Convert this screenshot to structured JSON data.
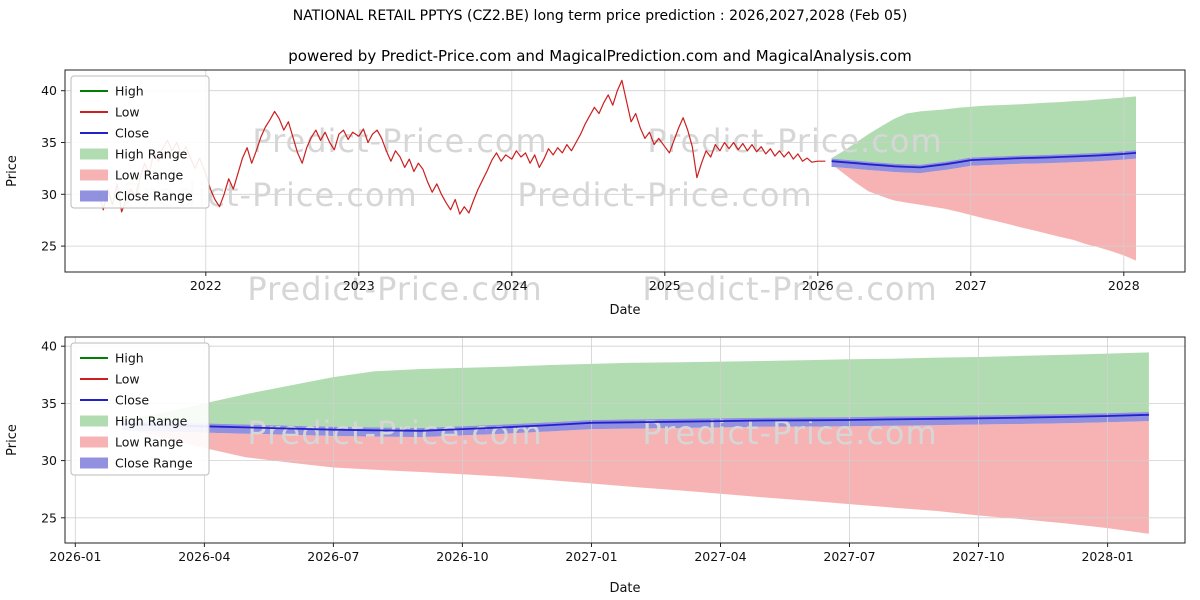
{
  "title": "NATIONAL RETAIL PPTYS (CZ2.BE) long term price prediction : 2026,2027,2028 (Feb 05)",
  "subtitle": "powered by Predict-Price.com and MagicalPrediction.com and MagicalAnalysis.com",
  "watermark": "Predict-Price.com",
  "colors": {
    "high": "#008000",
    "low": "#cc1f1f",
    "close": "#2222cc",
    "high_range": "#a8d8a8",
    "low_range": "#f6abab",
    "close_range": "#8585dd",
    "grid": "#d0d0d0",
    "watermark": "#d6d6d6",
    "axis": "#222222",
    "text": "#111111"
  },
  "legend": [
    {
      "label": "High",
      "swatch": "line",
      "color": "high"
    },
    {
      "label": "Low",
      "swatch": "line",
      "color": "low"
    },
    {
      "label": "Close",
      "swatch": "line",
      "color": "close"
    },
    {
      "label": "High Range",
      "swatch": "patch",
      "color": "high_range"
    },
    {
      "label": "Low Range",
      "swatch": "patch",
      "color": "low_range"
    },
    {
      "label": "Close Range",
      "swatch": "patch",
      "color": "close_range"
    }
  ],
  "chart_data": {
    "charts": [
      {
        "type": "line",
        "title": "",
        "xlabel": "Date",
        "ylabel": "Price",
        "xlim": [
          2021.08,
          2028.4
        ],
        "ylim": [
          22.5,
          42.0
        ],
        "xticks": [
          2022,
          2023,
          2024,
          2025,
          2026,
          2027,
          2028
        ],
        "xtick_labels": [
          "2022",
          "2023",
          "2024",
          "2025",
          "2026",
          "2027",
          "2028"
        ],
        "yticks": [
          25,
          30,
          35,
          40
        ],
        "grid": true,
        "legend_position": "upper-left",
        "show_history": true,
        "show_prediction": true
      },
      {
        "type": "line",
        "title": "",
        "xlabel": "Date",
        "ylabel": "Price",
        "xlim": [
          2025.98,
          2028.15
        ],
        "ylim": [
          22.8,
          40.8
        ],
        "xticks": [
          2026.0,
          2026.25,
          2026.5,
          2026.75,
          2027.0,
          2027.25,
          2027.5,
          2027.75,
          2028.0
        ],
        "xtick_labels": [
          "2026-01",
          "2026-04",
          "2026-07",
          "2026-10",
          "2027-01",
          "2027-04",
          "2027-07",
          "2027-10",
          "2028-01"
        ],
        "yticks": [
          25,
          30,
          35,
          40
        ],
        "grid": true,
        "legend_position": "upper-left",
        "show_history": false,
        "show_prediction": true
      }
    ],
    "history": {
      "name": "Low",
      "x": [
        2021.3,
        2021.33,
        2021.36,
        2021.39,
        2021.42,
        2021.45,
        2021.48,
        2021.51,
        2021.54,
        2021.57,
        2021.6,
        2021.63,
        2021.66,
        2021.69,
        2021.72,
        2021.75,
        2021.78,
        2021.81,
        2021.84,
        2021.87,
        2021.9,
        2021.93,
        2021.96,
        2022.0,
        2022.03,
        2022.06,
        2022.09,
        2022.12,
        2022.15,
        2022.18,
        2022.21,
        2022.24,
        2022.27,
        2022.3,
        2022.33,
        2022.36,
        2022.39,
        2022.42,
        2022.45,
        2022.48,
        2022.51,
        2022.54,
        2022.57,
        2022.6,
        2022.63,
        2022.66,
        2022.69,
        2022.72,
        2022.75,
        2022.78,
        2022.81,
        2022.84,
        2022.87,
        2022.9,
        2022.93,
        2022.96,
        2023.0,
        2023.03,
        2023.06,
        2023.09,
        2023.12,
        2023.15,
        2023.18,
        2023.21,
        2023.24,
        2023.27,
        2023.3,
        2023.33,
        2023.36,
        2023.39,
        2023.42,
        2023.45,
        2023.48,
        2023.51,
        2023.54,
        2023.57,
        2023.6,
        2023.63,
        2023.66,
        2023.69,
        2023.72,
        2023.75,
        2023.78,
        2023.81,
        2023.84,
        2023.87,
        2023.9,
        2023.93,
        2023.96,
        2024.0,
        2024.03,
        2024.06,
        2024.09,
        2024.12,
        2024.15,
        2024.18,
        2024.21,
        2024.24,
        2024.27,
        2024.3,
        2024.33,
        2024.36,
        2024.39,
        2024.42,
        2024.45,
        2024.48,
        2024.51,
        2024.54,
        2024.57,
        2024.6,
        2024.63,
        2024.66,
        2024.69,
        2024.72,
        2024.75,
        2024.78,
        2024.81,
        2024.84,
        2024.87,
        2024.9,
        2024.93,
        2024.96,
        2025.0,
        2025.03,
        2025.06,
        2025.09,
        2025.12,
        2025.15,
        2025.18,
        2025.21,
        2025.24,
        2025.27,
        2025.3,
        2025.33,
        2025.36,
        2025.39,
        2025.42,
        2025.45,
        2025.48,
        2025.51,
        2025.54,
        2025.57,
        2025.6,
        2025.63,
        2025.66,
        2025.69,
        2025.72,
        2025.75,
        2025.78,
        2025.81,
        2025.84,
        2025.87,
        2025.9,
        2025.93,
        2025.96,
        2026.0,
        2026.05
      ],
      "y": [
        30.0,
        28.5,
        30.5,
        29.0,
        31.0,
        28.3,
        29.5,
        30.5,
        29.8,
        31.5,
        33.0,
        32.0,
        34.0,
        33.2,
        34.5,
        35.2,
        34.2,
        35.0,
        33.8,
        34.6,
        33.5,
        32.5,
        33.5,
        32.0,
        30.5,
        29.5,
        28.8,
        30.0,
        31.5,
        30.5,
        32.0,
        33.5,
        34.5,
        33.0,
        34.2,
        35.5,
        36.5,
        37.2,
        38.0,
        37.3,
        36.2,
        37.0,
        35.5,
        34.0,
        33.0,
        34.5,
        35.5,
        36.2,
        35.2,
        36.0,
        35.0,
        34.3,
        35.8,
        36.2,
        35.3,
        36.0,
        35.6,
        36.3,
        35.0,
        35.8,
        36.2,
        35.4,
        34.2,
        33.2,
        34.2,
        33.6,
        32.6,
        33.4,
        32.2,
        33.0,
        32.4,
        31.2,
        30.2,
        31.0,
        30.0,
        29.2,
        28.5,
        29.5,
        28.1,
        28.8,
        28.2,
        29.4,
        30.5,
        31.4,
        32.3,
        33.3,
        34.0,
        33.2,
        33.8,
        33.4,
        34.2,
        33.6,
        34.0,
        33.0,
        33.8,
        32.6,
        33.4,
        34.4,
        33.8,
        34.5,
        34.0,
        34.8,
        34.2,
        35.0,
        35.8,
        36.8,
        37.6,
        38.4,
        37.8,
        38.8,
        39.6,
        38.6,
        40.0,
        41.0,
        39.0,
        37.0,
        37.8,
        36.4,
        35.4,
        36.0,
        34.8,
        35.4,
        34.6,
        34.0,
        35.2,
        36.4,
        37.4,
        36.2,
        34.6,
        31.6,
        33.0,
        34.2,
        33.6,
        34.8,
        34.2,
        35.0,
        34.4,
        35.0,
        34.3,
        34.9,
        34.2,
        34.8,
        34.1,
        34.6,
        33.9,
        34.4,
        33.7,
        34.2,
        33.6,
        34.1,
        33.4,
        33.9,
        33.2,
        33.5,
        33.1,
        33.2,
        33.2
      ]
    },
    "prediction": {
      "x": [
        2026.09,
        2026.17,
        2026.25,
        2026.33,
        2026.42,
        2026.5,
        2026.58,
        2026.67,
        2026.75,
        2026.83,
        2026.92,
        2027.0,
        2027.08,
        2027.17,
        2027.25,
        2027.33,
        2027.42,
        2027.5,
        2027.58,
        2027.67,
        2027.75,
        2027.83,
        2027.92,
        2028.0,
        2028.08
      ],
      "close": [
        33.2,
        33.1,
        33.0,
        32.9,
        32.8,
        32.7,
        32.65,
        32.6,
        32.75,
        32.9,
        33.1,
        33.3,
        33.35,
        33.4,
        33.45,
        33.5,
        33.52,
        33.55,
        33.6,
        33.65,
        33.7,
        33.75,
        33.82,
        33.9,
        34.0
      ],
      "high": [
        33.5,
        34.2,
        35.0,
        35.8,
        36.6,
        37.3,
        37.8,
        38.0,
        38.1,
        38.2,
        38.35,
        38.45,
        38.55,
        38.6,
        38.65,
        38.7,
        38.78,
        38.85,
        38.9,
        39.0,
        39.05,
        39.15,
        39.25,
        39.35,
        39.45
      ],
      "low": [
        32.9,
        32.0,
        31.1,
        30.3,
        29.8,
        29.4,
        29.2,
        29.0,
        28.8,
        28.6,
        28.3,
        28.0,
        27.7,
        27.4,
        27.1,
        26.8,
        26.5,
        26.2,
        25.9,
        25.6,
        25.2,
        24.9,
        24.5,
        24.1,
        23.6
      ],
      "close_band_high": [
        33.45,
        33.35,
        33.25,
        33.15,
        33.05,
        32.95,
        32.9,
        32.85,
        33.0,
        33.15,
        33.35,
        33.55,
        33.6,
        33.65,
        33.7,
        33.75,
        33.77,
        33.8,
        33.85,
        33.9,
        33.95,
        34.0,
        34.07,
        34.15,
        34.25
      ],
      "close_band_low": [
        32.65,
        32.55,
        32.45,
        32.35,
        32.25,
        32.15,
        32.1,
        32.05,
        32.2,
        32.35,
        32.55,
        32.75,
        32.8,
        32.85,
        32.9,
        32.95,
        32.97,
        33.0,
        33.05,
        33.1,
        33.15,
        33.2,
        33.27,
        33.35,
        33.45
      ]
    }
  }
}
